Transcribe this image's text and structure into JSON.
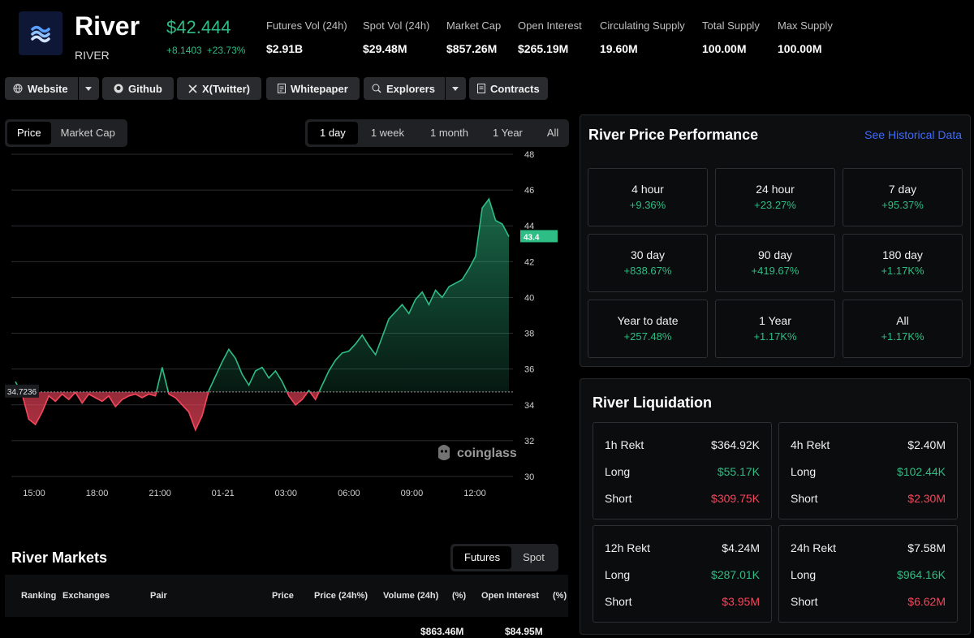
{
  "header": {
    "name": "River",
    "symbol": "RIVER",
    "price": "$42.444",
    "change_abs": "+8.1403",
    "change_pct": "+23.73%",
    "stats": [
      {
        "label": "Futures Vol (24h)",
        "value": "$2.91B"
      },
      {
        "label": "Spot Vol (24h)",
        "value": "$29.48M"
      },
      {
        "label": "Market Cap",
        "value": "$857.26M"
      },
      {
        "label": "Open Interest",
        "value": "$265.19M"
      },
      {
        "label": "Circulating Supply",
        "value": "19.60M"
      },
      {
        "label": "Total Supply",
        "value": "100.00M"
      },
      {
        "label": "Max Supply",
        "value": "100.00M"
      }
    ]
  },
  "links": {
    "website": "Website",
    "github": "Github",
    "twitter": "X(Twitter)",
    "whitepaper": "Whitepaper",
    "explorers": "Explorers",
    "contracts": "Contracts"
  },
  "chart_tabs": {
    "price": "Price",
    "market_cap": "Market Cap"
  },
  "ranges": [
    "1 day",
    "1 week",
    "1 month",
    "1 Year",
    "All"
  ],
  "chart_data": {
    "type": "area",
    "x_ticks": [
      "15:00",
      "18:00",
      "21:00",
      "01-21",
      "03:00",
      "06:00",
      "09:00",
      "12:00"
    ],
    "y_ticks": [
      48,
      46,
      44,
      42,
      40,
      38,
      36,
      34,
      32,
      30
    ],
    "ylim": [
      30,
      48
    ],
    "baseline": 34.7236,
    "baseline_label": "34.7236",
    "last_value": 43.4,
    "last_label": "43.4",
    "watermark": "coinglass",
    "colors": {
      "up": "#2ebd85",
      "down": "#f6465d"
    },
    "series": [
      {
        "x": 0.0,
        "y": 35.3
      },
      {
        "x": 0.3,
        "y": 34.6
      },
      {
        "x": 0.6,
        "y": 33.2
      },
      {
        "x": 0.9,
        "y": 32.9
      },
      {
        "x": 1.2,
        "y": 33.6
      },
      {
        "x": 1.5,
        "y": 34.5
      },
      {
        "x": 1.8,
        "y": 34.2
      },
      {
        "x": 2.1,
        "y": 34.6
      },
      {
        "x": 2.4,
        "y": 34.3
      },
      {
        "x": 2.7,
        "y": 34.7
      },
      {
        "x": 3.0,
        "y": 34.1
      },
      {
        "x": 3.3,
        "y": 34.6
      },
      {
        "x": 3.6,
        "y": 34.4
      },
      {
        "x": 3.9,
        "y": 34.2
      },
      {
        "x": 4.2,
        "y": 34.5
      },
      {
        "x": 4.5,
        "y": 33.9
      },
      {
        "x": 4.8,
        "y": 34.3
      },
      {
        "x": 5.1,
        "y": 34.5
      },
      {
        "x": 5.4,
        "y": 34.6
      },
      {
        "x": 5.7,
        "y": 34.4
      },
      {
        "x": 6.0,
        "y": 34.6
      },
      {
        "x": 6.3,
        "y": 34.5
      },
      {
        "x": 6.6,
        "y": 36.1
      },
      {
        "x": 6.9,
        "y": 34.6
      },
      {
        "x": 7.2,
        "y": 34.4
      },
      {
        "x": 7.5,
        "y": 34.0
      },
      {
        "x": 7.8,
        "y": 33.6
      },
      {
        "x": 8.1,
        "y": 32.6
      },
      {
        "x": 8.4,
        "y": 33.4
      },
      {
        "x": 8.7,
        "y": 34.8
      },
      {
        "x": 9.0,
        "y": 35.6
      },
      {
        "x": 9.3,
        "y": 36.4
      },
      {
        "x": 9.6,
        "y": 37.1
      },
      {
        "x": 9.9,
        "y": 36.6
      },
      {
        "x": 10.2,
        "y": 35.7
      },
      {
        "x": 10.5,
        "y": 35.1
      },
      {
        "x": 10.8,
        "y": 35.9
      },
      {
        "x": 11.1,
        "y": 36.1
      },
      {
        "x": 11.4,
        "y": 35.5
      },
      {
        "x": 11.7,
        "y": 35.9
      },
      {
        "x": 12.0,
        "y": 35.3
      },
      {
        "x": 12.3,
        "y": 34.5
      },
      {
        "x": 12.6,
        "y": 34.0
      },
      {
        "x": 12.9,
        "y": 34.3
      },
      {
        "x": 13.2,
        "y": 34.8
      },
      {
        "x": 13.5,
        "y": 34.3
      },
      {
        "x": 13.8,
        "y": 35.1
      },
      {
        "x": 14.1,
        "y": 35.9
      },
      {
        "x": 14.4,
        "y": 36.5
      },
      {
        "x": 14.7,
        "y": 36.9
      },
      {
        "x": 15.0,
        "y": 37.0
      },
      {
        "x": 15.3,
        "y": 37.4
      },
      {
        "x": 15.6,
        "y": 37.9
      },
      {
        "x": 15.9,
        "y": 37.3
      },
      {
        "x": 16.2,
        "y": 36.8
      },
      {
        "x": 16.5,
        "y": 37.8
      },
      {
        "x": 16.8,
        "y": 38.8
      },
      {
        "x": 17.1,
        "y": 39.2
      },
      {
        "x": 17.4,
        "y": 39.6
      },
      {
        "x": 17.7,
        "y": 39.1
      },
      {
        "x": 18.0,
        "y": 39.9
      },
      {
        "x": 18.3,
        "y": 40.3
      },
      {
        "x": 18.6,
        "y": 39.6
      },
      {
        "x": 18.9,
        "y": 40.4
      },
      {
        "x": 19.2,
        "y": 40.0
      },
      {
        "x": 19.5,
        "y": 40.6
      },
      {
        "x": 19.8,
        "y": 40.8
      },
      {
        "x": 20.1,
        "y": 41.0
      },
      {
        "x": 20.4,
        "y": 41.6
      },
      {
        "x": 20.7,
        "y": 42.3
      },
      {
        "x": 21.0,
        "y": 45.0
      },
      {
        "x": 21.3,
        "y": 45.5
      },
      {
        "x": 21.6,
        "y": 44.3
      },
      {
        "x": 21.9,
        "y": 44.1
      },
      {
        "x": 22.2,
        "y": 43.4
      }
    ]
  },
  "performance": {
    "title": "River Price Performance",
    "link": "See Historical Data",
    "items": [
      {
        "period": "4 hour",
        "change": "+9.36%"
      },
      {
        "period": "24 hour",
        "change": "+23.27%"
      },
      {
        "period": "7 day",
        "change": "+95.37%"
      },
      {
        "period": "30 day",
        "change": "+838.67%"
      },
      {
        "period": "90 day",
        "change": "+419.67%"
      },
      {
        "period": "180 day",
        "change": "+1.17K%"
      },
      {
        "period": "Year to date",
        "change": "+257.48%"
      },
      {
        "period": "1 Year",
        "change": "+1.17K%"
      },
      {
        "period": "All",
        "change": "+1.17K%"
      }
    ]
  },
  "liquidation": {
    "title": "River Liquidation",
    "long_label": "Long",
    "short_label": "Short",
    "cards": [
      {
        "label": "1h Rekt",
        "total": "$364.92K",
        "long": "$55.17K",
        "short": "$309.75K"
      },
      {
        "label": "4h Rekt",
        "total": "$2.40M",
        "long": "$102.44K",
        "short": "$2.30M"
      },
      {
        "label": "12h Rekt",
        "total": "$4.24M",
        "long": "$287.01K",
        "short": "$3.95M"
      },
      {
        "label": "24h Rekt",
        "total": "$7.58M",
        "long": "$964.16K",
        "short": "$6.62M"
      }
    ]
  },
  "markets": {
    "title": "River Markets",
    "tabs": [
      "Futures",
      "Spot"
    ],
    "columns": [
      "Ranking",
      "Exchanges",
      "Pair",
      "Price",
      "Price (24h%)",
      "Volume (24h)",
      "(%)",
      "Open Interest",
      "(%)"
    ],
    "row": {
      "volume": "$863.46M",
      "oi": "$84.95M"
    }
  }
}
